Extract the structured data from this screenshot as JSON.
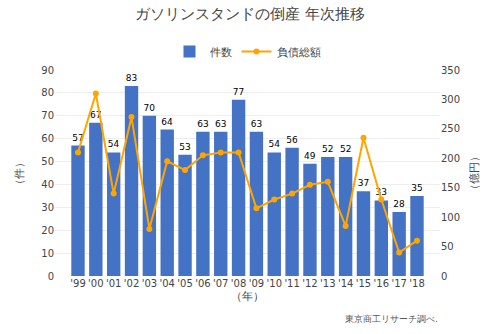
{
  "chart_data": {
    "type": "bar",
    "title": "ガソリンスタンドの倒産 年次推移",
    "x_label": "（年）",
    "y_label": "（件）",
    "y2_label": "（億円）",
    "categories": [
      "'99",
      "'00",
      "'01",
      "'02",
      "'03",
      "'04",
      "'05",
      "'06",
      "'07",
      "'08",
      "'09",
      "'10",
      "'11",
      "'12",
      "'13",
      "'14",
      "'15",
      "'16",
      "'17",
      "'18"
    ],
    "series": [
      {
        "name": "件数",
        "type": "bar",
        "color": "#4472C4",
        "data_labels": true,
        "values": [
          57,
          67,
          54,
          83,
          70,
          64,
          53,
          63,
          63,
          77,
          63,
          54,
          56,
          49,
          52,
          52,
          37,
          33,
          28,
          35
        ]
      },
      {
        "name": "負債総額",
        "type": "line",
        "axis": "y2",
        "color": "#FFA500",
        "marker": "circle",
        "line_style": "solid",
        "values": [
          210,
          310,
          140,
          270,
          80,
          195,
          180,
          205,
          210,
          210,
          115,
          130,
          140,
          155,
          160,
          85,
          235,
          130,
          40,
          60
        ]
      }
    ],
    "ylim": [
      0,
      90
    ],
    "yticks": [
      0,
      10,
      20,
      30,
      40,
      50,
      60,
      70,
      80,
      90
    ],
    "y2lim": [
      0,
      350
    ],
    "y2ticks": [
      0,
      50,
      100,
      150,
      200,
      250,
      300,
      350
    ],
    "grid": true,
    "legend": "top",
    "annotations": [
      "東京商工リサーチ調べ."
    ]
  }
}
